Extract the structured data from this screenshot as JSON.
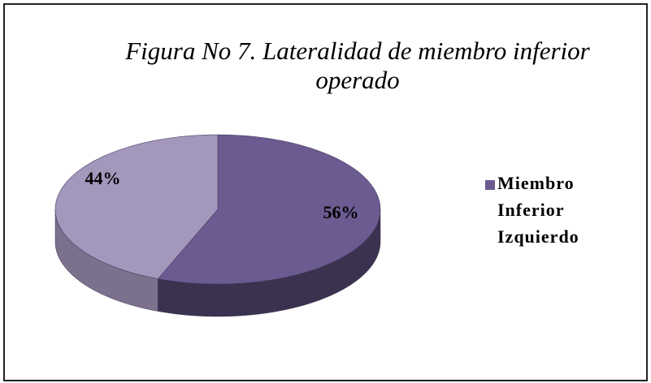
{
  "chart_data": {
    "type": "pie",
    "title": "Figura No 7. Lateralidad de miembro inferior operado",
    "categories": [
      "Miembro Inferior Izquierdo",
      null
    ],
    "values": [
      56,
      44
    ],
    "value_labels": [
      "56%",
      "44%"
    ],
    "colors": [
      "#6b5b91",
      "#a497bc"
    ]
  }
}
